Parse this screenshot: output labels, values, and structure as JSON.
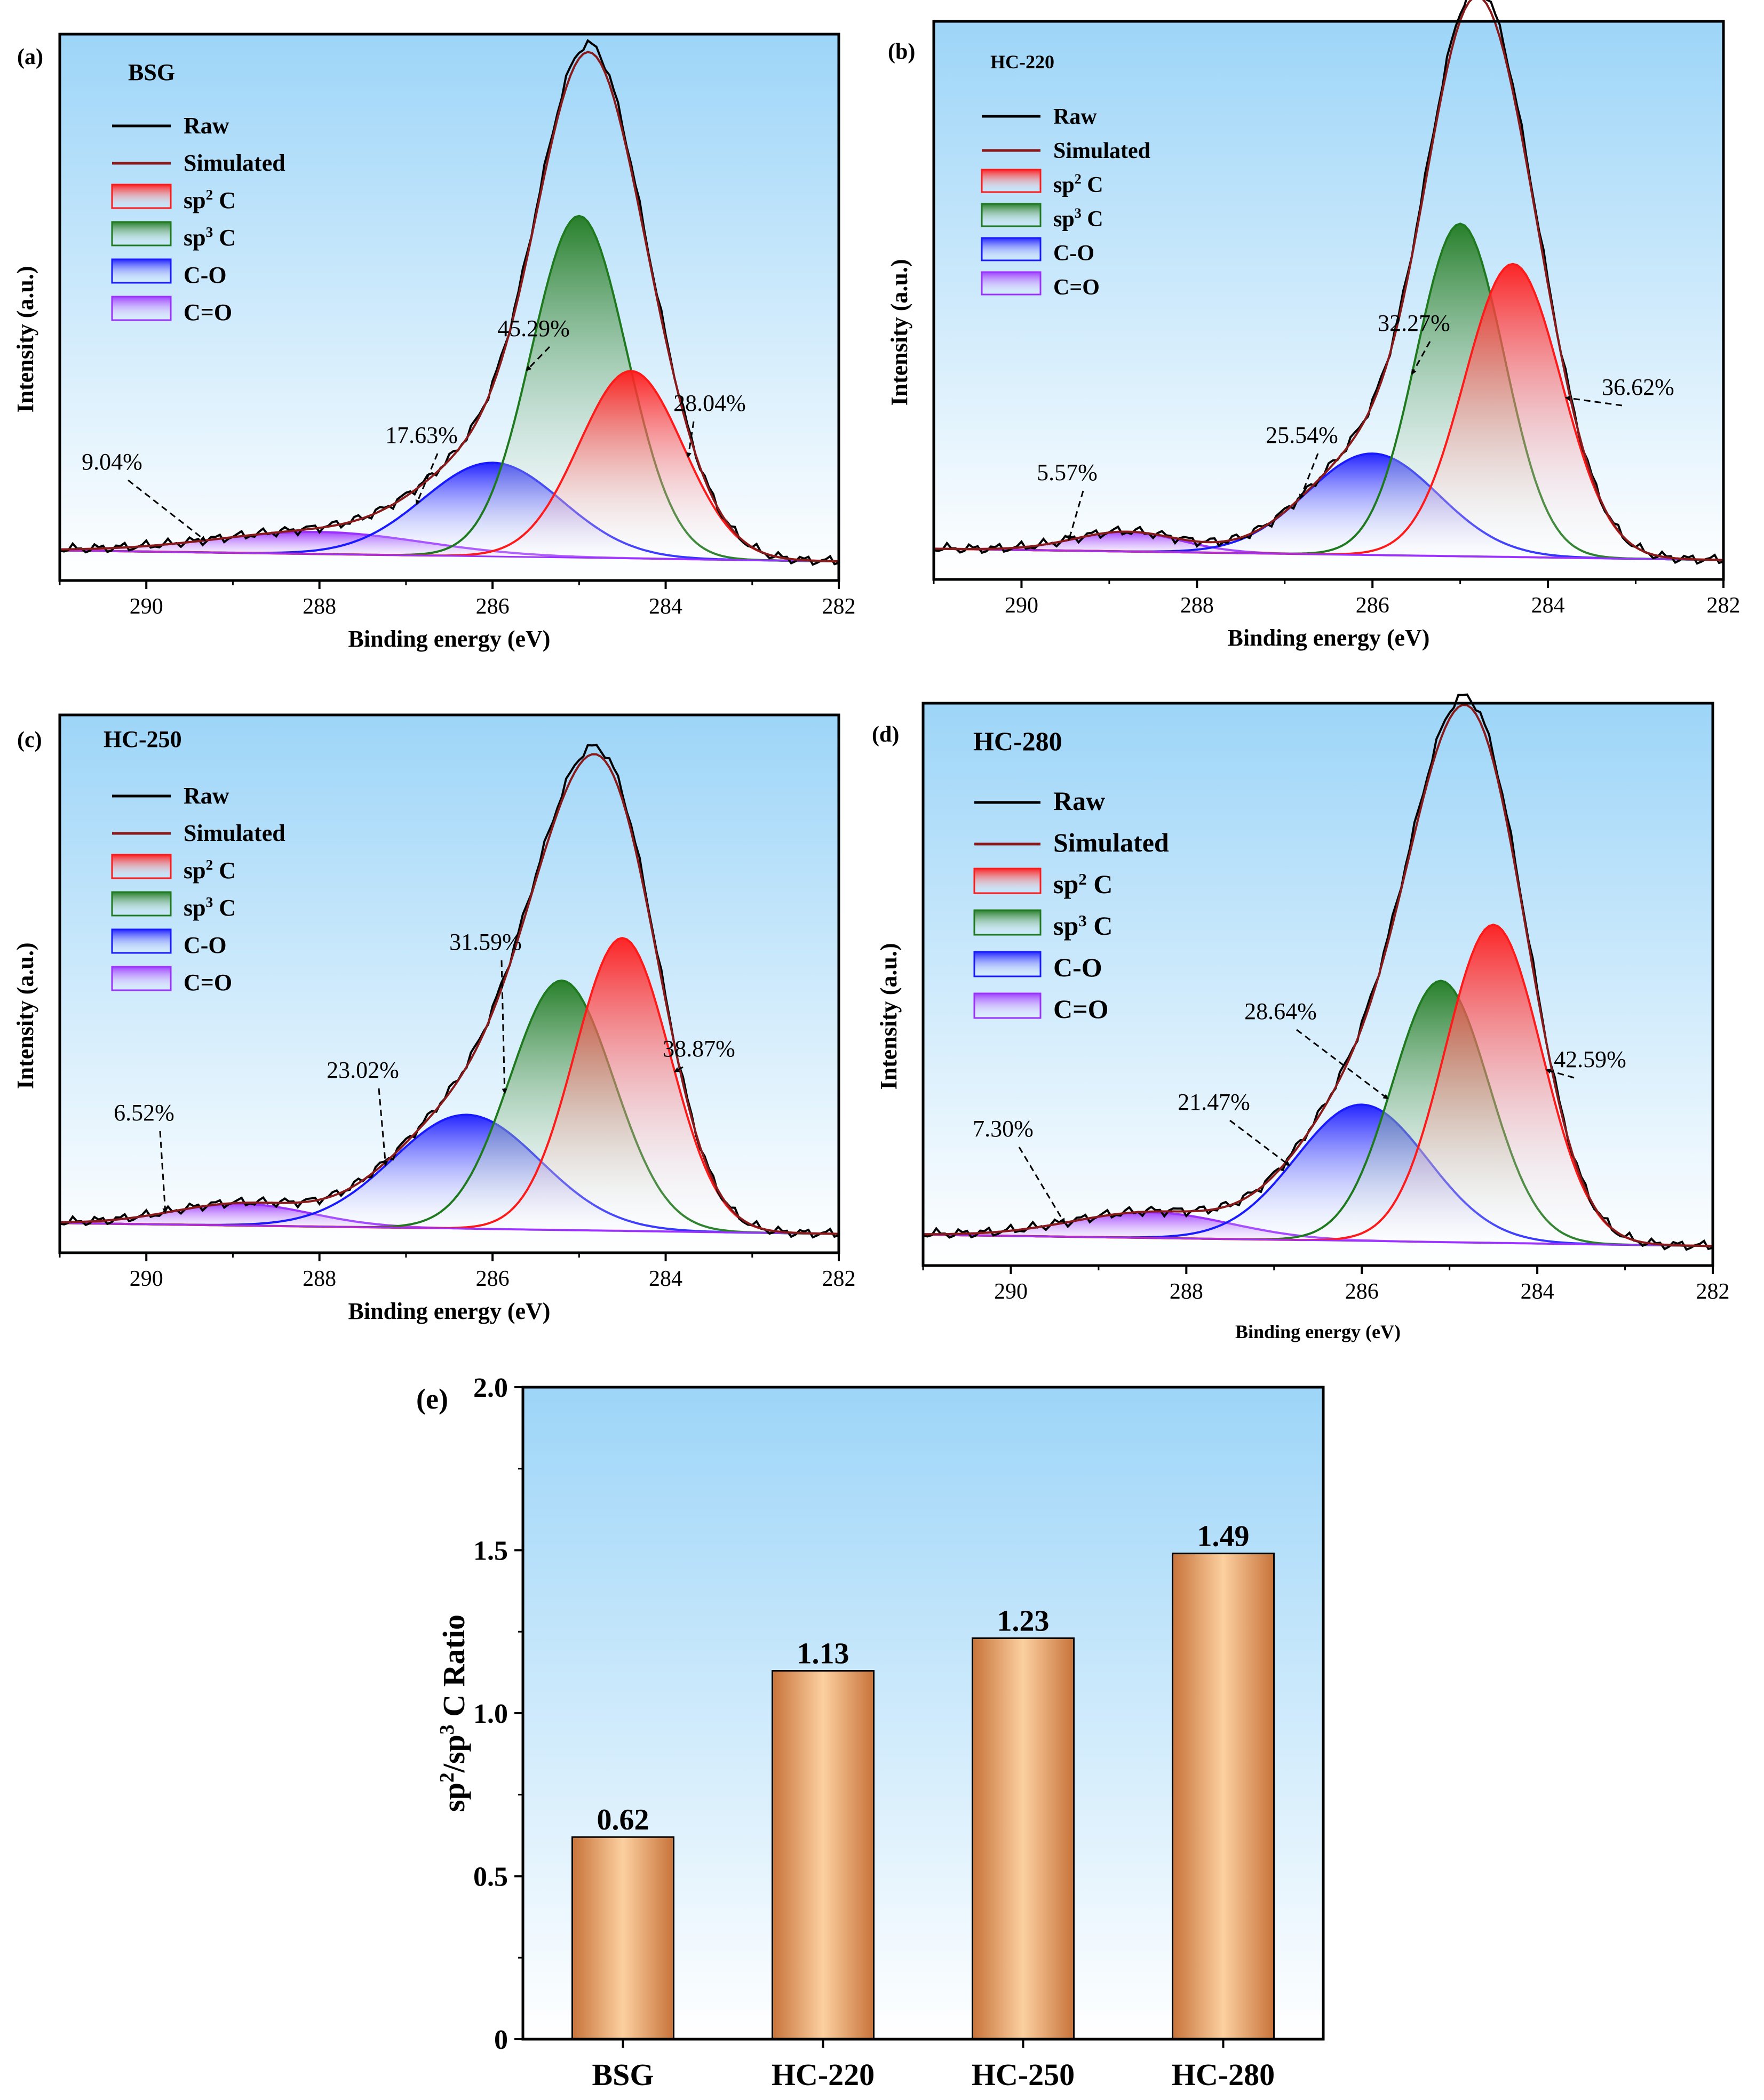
{
  "colors": {
    "sp2": "#ff1a1a",
    "sp3": "#1f7a1f",
    "co": "#1a1aff",
    "cdo": "#9b30ff",
    "raw": "#000000",
    "simulated": "#8b1a1a",
    "bg_top": "#9dd5f8",
    "bg_bottom": "#ffffff",
    "bar_dark": "#c8733a",
    "bar_light": "#fcd0a0"
  },
  "chart_data": [
    {
      "type": "line",
      "panel": "(a)",
      "title": "BSG",
      "xlabel": "Binding energy (eV)",
      "ylabel": "Intensity (a.u.)",
      "xlim": [
        291,
        282
      ],
      "xticks": [
        "290",
        "288",
        "286",
        "284",
        "282"
      ],
      "legend": [
        "Raw",
        "Simulated",
        "sp2 C",
        "sp3 C",
        "C-O",
        "C=O"
      ],
      "components": [
        {
          "name": "sp2 C",
          "center": 284.4,
          "height": 0.34,
          "width": 0.6,
          "percent": "28.04%"
        },
        {
          "name": "sp3 C",
          "center": 285.0,
          "height": 0.62,
          "width": 0.55,
          "percent": "45.29%"
        },
        {
          "name": "C-O",
          "center": 286.0,
          "height": 0.17,
          "width": 0.8,
          "percent": "17.63%"
        },
        {
          "name": "C=O",
          "center": 288.0,
          "height": 0.04,
          "width": 1.2,
          "percent": "9.04%"
        }
      ],
      "annotations": [
        "45.29%",
        "28.04%",
        "17.63%",
        "9.04%"
      ]
    },
    {
      "type": "line",
      "panel": "(b)",
      "title": "HC-220",
      "xlabel": "Binding energy (eV)",
      "ylabel": "Intensity (a.u.)",
      "xlim": [
        291,
        282
      ],
      "xticks": [
        "290",
        "288",
        "286",
        "284",
        "282"
      ],
      "legend": [
        "Raw",
        "Simulated",
        "sp2 C",
        "sp3 C",
        "C-O",
        "C=O"
      ],
      "components": [
        {
          "name": "sp2 C",
          "center": 284.4,
          "height": 0.52,
          "width": 0.55,
          "percent": "36.62%"
        },
        {
          "name": "sp3 C",
          "center": 285.0,
          "height": 0.59,
          "width": 0.5,
          "percent": "32.27%"
        },
        {
          "name": "C-O",
          "center": 286.0,
          "height": 0.18,
          "width": 0.75,
          "percent": "25.54%"
        },
        {
          "name": "C=O",
          "center": 288.8,
          "height": 0.035,
          "width": 0.6,
          "percent": "5.57%"
        }
      ],
      "annotations": [
        "32.27%",
        "36.62%",
        "25.54%",
        "5.57%"
      ]
    },
    {
      "type": "line",
      "panel": "(c)",
      "title": "HC-250",
      "xlabel": "Binding energy (eV)",
      "ylabel": "Intensity (a.u.)",
      "xlim": [
        291,
        282
      ],
      "xticks": [
        "290",
        "288",
        "286",
        "284",
        "282"
      ],
      "legend": [
        "Raw",
        "Simulated",
        "sp2 C",
        "sp3 C",
        "C-O",
        "C=O"
      ],
      "components": [
        {
          "name": "sp2 C",
          "center": 284.5,
          "height": 0.54,
          "width": 0.55,
          "percent": "38.87%"
        },
        {
          "name": "sp3 C",
          "center": 285.2,
          "height": 0.46,
          "width": 0.6,
          "percent": "31.59%"
        },
        {
          "name": "C-O",
          "center": 286.3,
          "height": 0.21,
          "width": 0.85,
          "percent": "23.02%"
        },
        {
          "name": "C=O",
          "center": 288.9,
          "height": 0.04,
          "width": 0.8,
          "percent": "6.52%"
        }
      ],
      "annotations": [
        "31.59%",
        "38.87%",
        "23.02%",
        "6.52%"
      ]
    },
    {
      "type": "line",
      "panel": "(d)",
      "title": "HC-280",
      "xlabel": "Binding energy (eV)",
      "ylabel": "Intensity (a.u.)",
      "xlim": [
        291,
        282
      ],
      "xticks": [
        "290",
        "288",
        "286",
        "284",
        "282"
      ],
      "legend": [
        "Raw",
        "Simulated",
        "sp2 C",
        "sp3 C",
        "C-O",
        "C=O"
      ],
      "components": [
        {
          "name": "sp2 C",
          "center": 284.5,
          "height": 0.56,
          "width": 0.55,
          "percent": "42.59%"
        },
        {
          "name": "sp3 C",
          "center": 285.1,
          "height": 0.46,
          "width": 0.55,
          "percent": "28.64%"
        },
        {
          "name": "C-O",
          "center": 286.0,
          "height": 0.24,
          "width": 0.75,
          "percent": "21.47%"
        },
        {
          "name": "C=O",
          "center": 288.4,
          "height": 0.045,
          "width": 0.9,
          "percent": "7.30%"
        }
      ],
      "annotations": [
        "28.64%",
        "42.59%",
        "21.47%",
        "7.30%"
      ]
    },
    {
      "type": "bar",
      "panel": "(e)",
      "ylabel": "sp2/sp3 C Ratio",
      "ylim": [
        0,
        2.0
      ],
      "yticks": [
        "0",
        "0.5",
        "1.0",
        "1.5",
        "2.0"
      ],
      "categories": [
        "BSG",
        "HC-220",
        "HC-250",
        "HC-280"
      ],
      "values": [
        0.62,
        1.13,
        1.23,
        1.49
      ],
      "labels": [
        "0.62",
        "1.13",
        "1.23",
        "1.49"
      ]
    }
  ]
}
